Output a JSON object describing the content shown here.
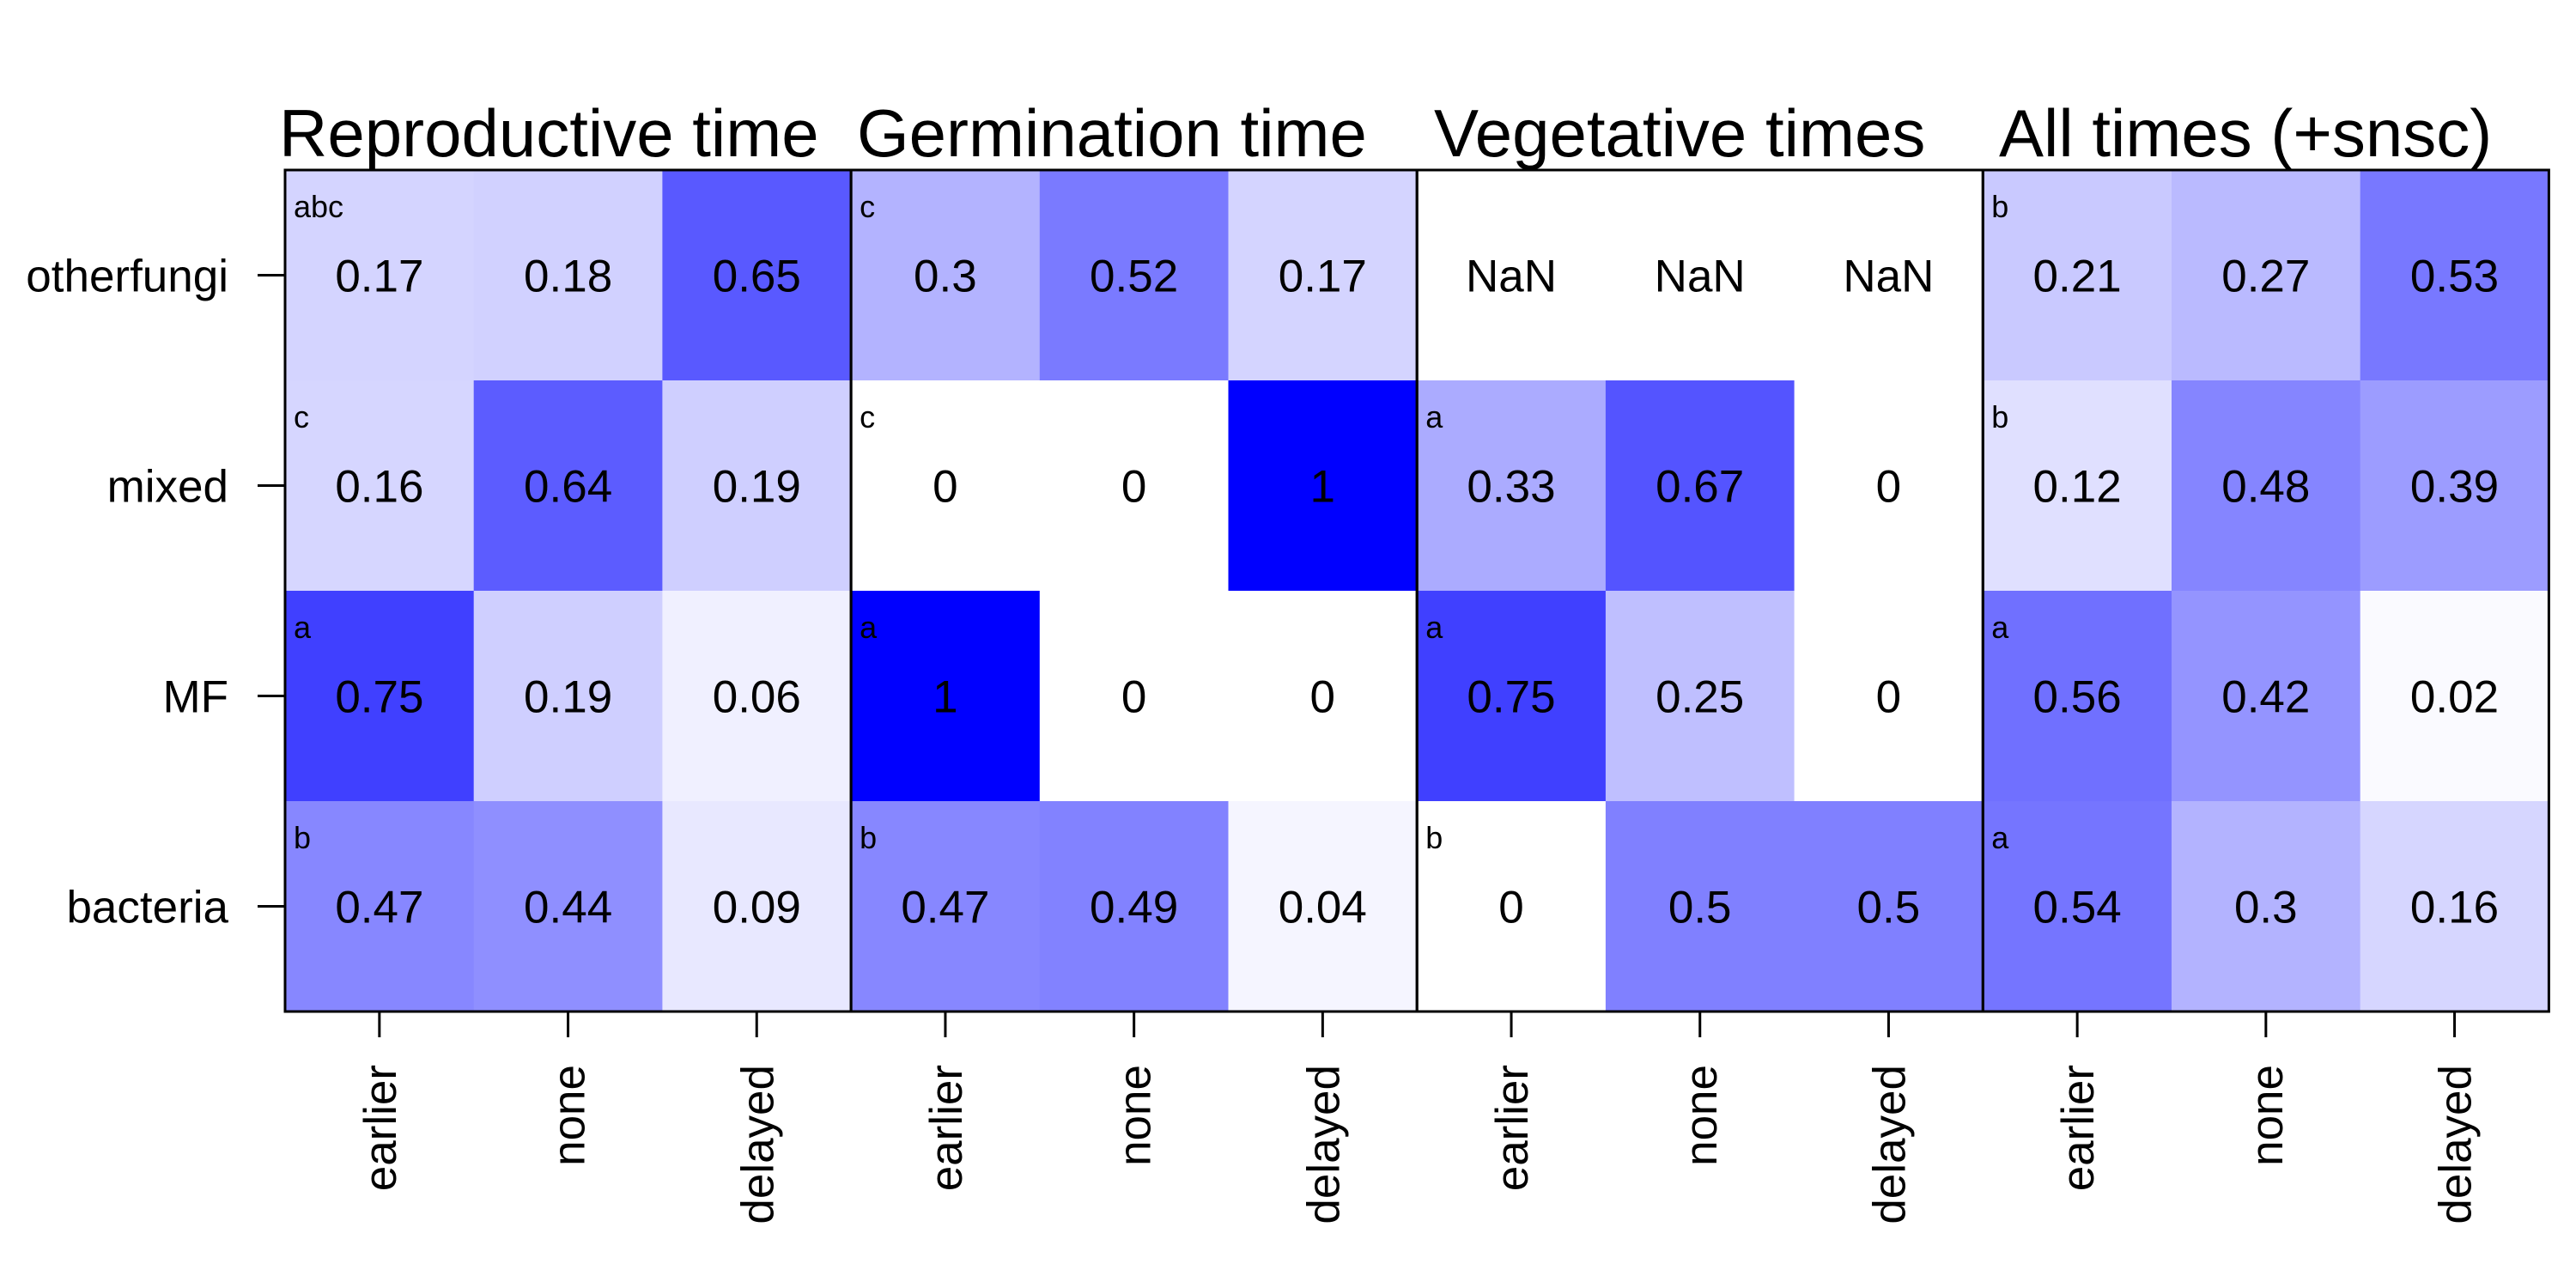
{
  "chart_data": {
    "type": "heatmap",
    "rows": [
      "otherfungi",
      "mixed",
      "MF",
      "bacteria"
    ],
    "columns": [
      "earlier",
      "none",
      "delayed"
    ],
    "color_high": "#0000ff",
    "color_low": "#ffffff",
    "panels": [
      {
        "title": "Reproductive time",
        "letters": [
          "abc",
          "c",
          "a",
          "b"
        ],
        "values": [
          [
            0.17,
            0.18,
            0.65
          ],
          [
            0.16,
            0.64,
            0.19
          ],
          [
            0.75,
            0.19,
            0.06
          ],
          [
            0.47,
            0.44,
            0.09
          ]
        ],
        "labels": [
          [
            "0.17",
            "0.18",
            "0.65"
          ],
          [
            "0.16",
            "0.64",
            "0.19"
          ],
          [
            "0.75",
            "0.19",
            "0.06"
          ],
          [
            "0.47",
            "0.44",
            "0.09"
          ]
        ]
      },
      {
        "title": "Germination time",
        "letters": [
          "c",
          "c",
          "a",
          "b"
        ],
        "values": [
          [
            0.3,
            0.52,
            0.17
          ],
          [
            0,
            0,
            1
          ],
          [
            1,
            0,
            0
          ],
          [
            0.47,
            0.49,
            0.04
          ]
        ],
        "labels": [
          [
            "0.3",
            "0.52",
            "0.17"
          ],
          [
            "0",
            "0",
            "1"
          ],
          [
            "1",
            "0",
            "0"
          ],
          [
            "0.47",
            "0.49",
            "0.04"
          ]
        ]
      },
      {
        "title": "Vegetative times",
        "letters": [
          "",
          "a",
          "a",
          "b"
        ],
        "values": [
          [
            null,
            null,
            null
          ],
          [
            0.33,
            0.67,
            0
          ],
          [
            0.75,
            0.25,
            0
          ],
          [
            0,
            0.5,
            0.5
          ]
        ],
        "labels": [
          [
            "NaN",
            "NaN",
            "NaN"
          ],
          [
            "0.33",
            "0.67",
            "0"
          ],
          [
            "0.75",
            "0.25",
            "0"
          ],
          [
            "0",
            "0.5",
            "0.5"
          ]
        ]
      },
      {
        "title": "All times (+snsc)",
        "letters": [
          "b",
          "b",
          "a",
          "a"
        ],
        "values": [
          [
            0.21,
            0.27,
            0.53
          ],
          [
            0.12,
            0.48,
            0.39
          ],
          [
            0.56,
            0.42,
            0.02
          ],
          [
            0.54,
            0.3,
            0.16
          ]
        ],
        "labels": [
          [
            "0.21",
            "0.27",
            "0.53"
          ],
          [
            "0.12",
            "0.48",
            "0.39"
          ],
          [
            "0.56",
            "0.42",
            "0.02"
          ],
          [
            "0.54",
            "0.3",
            "0.16"
          ]
        ]
      }
    ]
  }
}
